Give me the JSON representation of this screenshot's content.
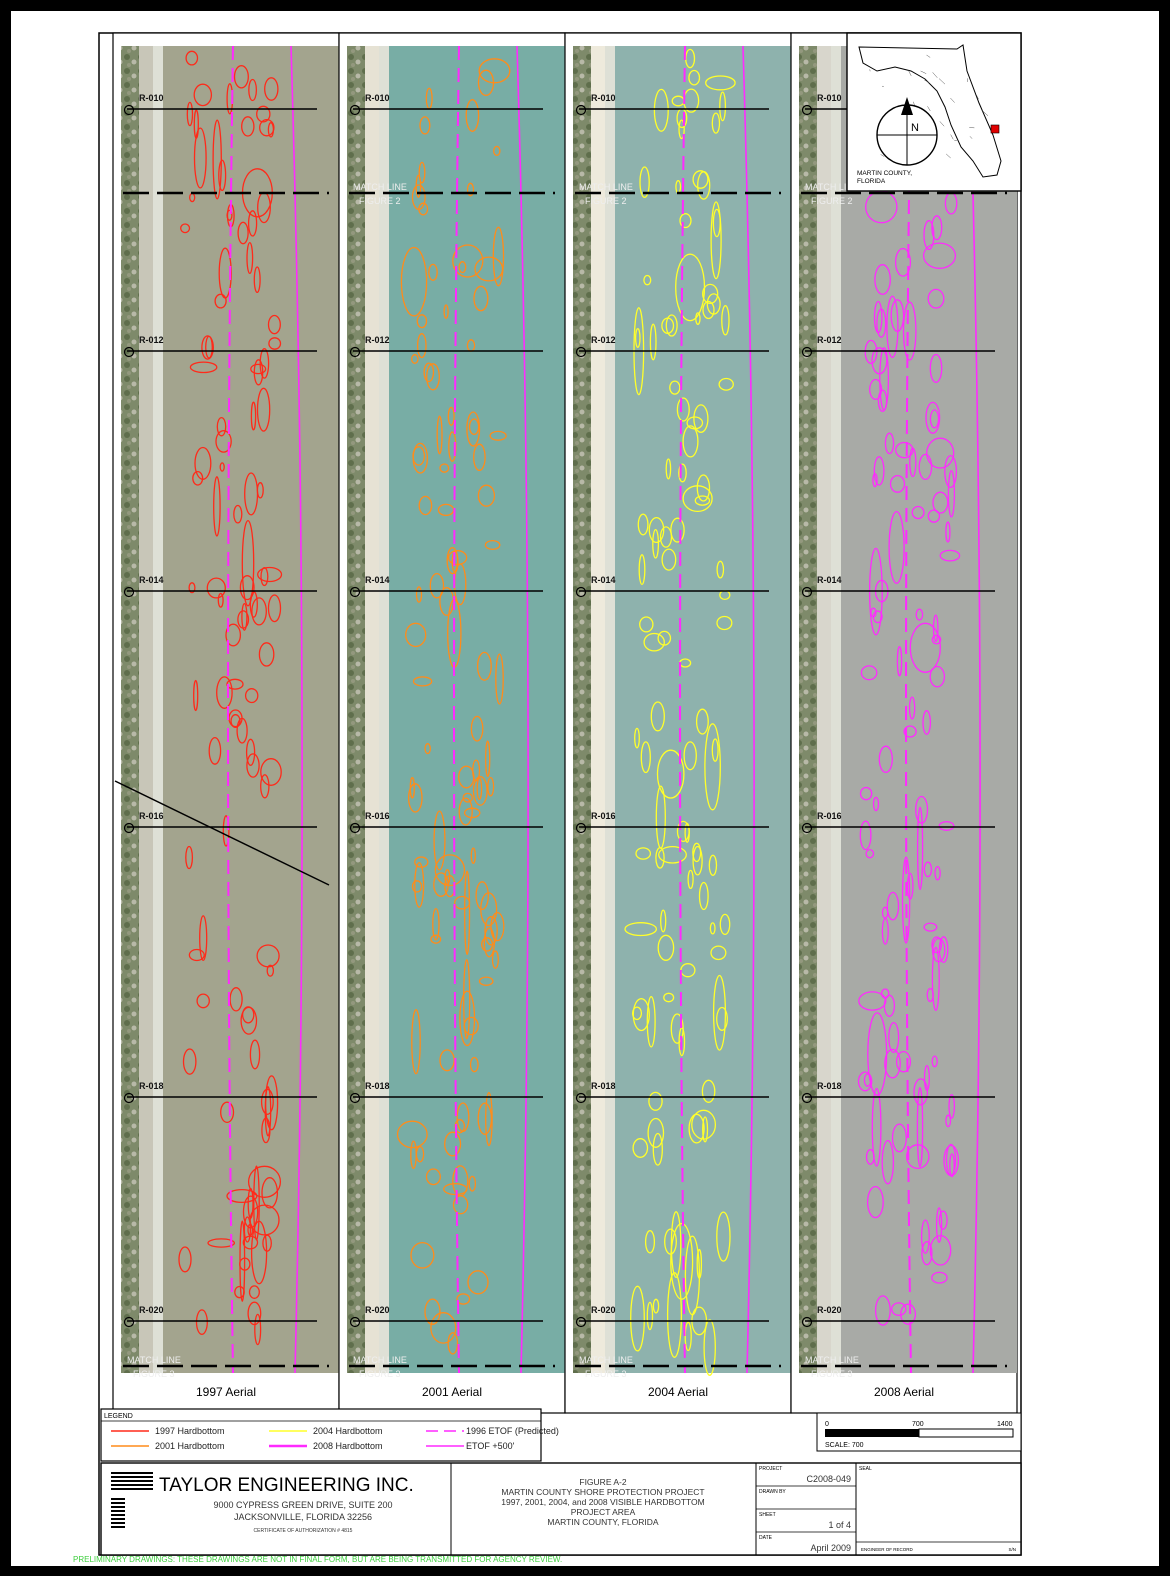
{
  "panels": [
    {
      "id": "p1997",
      "caption": "1997 Aerial",
      "color": "#ff2a1a",
      "water": "#a3a48e",
      "sand": "#c8c6b8",
      "has_match_text": false
    },
    {
      "id": "p2001",
      "caption": "2001 Aerial",
      "color": "#ff8c1a",
      "water": "#78ada5",
      "sand": "#e6e2d4",
      "has_match_text": true
    },
    {
      "id": "p2004",
      "caption": "2004 Aerial",
      "color": "#ffff2a",
      "water": "#8eb2ad",
      "sand": "#eeeadc",
      "has_match_text": true
    },
    {
      "id": "p2008",
      "caption": "2008 Aerial",
      "color": "#ff2aff",
      "water": "#a8aaa6",
      "sand": "#d8d6cc",
      "has_match_text": true
    }
  ],
  "range_lines": [
    "R-010",
    "R-012",
    "R-014",
    "R-016",
    "R-018",
    "R-020"
  ],
  "match_lines": {
    "top_1": "MATCH LINE",
    "top_2": "FIGURE 2",
    "bottom_1": "MATCH LINE",
    "bottom_2": "FIGURE 3"
  },
  "locator_map": {
    "caption_1": "MARTIN COUNTY,",
    "caption_2": "FLORIDA",
    "north": "N"
  },
  "legend": {
    "title": "LEGEND",
    "items": [
      {
        "label": "1997 Hardbottom",
        "color": "#ff2a1a",
        "style": "solid"
      },
      {
        "label": "2001 Hardbottom",
        "color": "#ff8c1a",
        "style": "solid"
      },
      {
        "label": "2004 Hardbottom",
        "color": "#ffff2a",
        "style": "solid"
      },
      {
        "label": "2008 Hardbottom",
        "color": "#ff2aff",
        "style": "thick"
      },
      {
        "label": "1996 ETOF (Predicted)",
        "color": "#ff2aff",
        "style": "dashed"
      },
      {
        "label": "ETOF +500'",
        "color": "#ff2aff",
        "style": "thin"
      }
    ]
  },
  "scale": {
    "tick_0": "0",
    "tick_1": "700",
    "tick_2": "1400",
    "label": "SCALE: 700"
  },
  "title_block": {
    "company": "TAYLOR ENGINEERING INC.",
    "address_1": "9000 CYPRESS GREEN DRIVE, SUITE 200",
    "address_2": "JACKSONVILLE, FLORIDA 32256",
    "cert": "CERTIFICATE OF AUTHORIZATION # 4815",
    "fig_1": "FIGURE A-2",
    "fig_2": "MARTIN COUNTY SHORE PROTECTION PROJECT",
    "fig_3": "1997, 2001, 2004, and 2008 VISIBLE HARDBOTTOM",
    "fig_4": "PROJECT AREA",
    "fig_5": "MARTIN COUNTY, FLORIDA",
    "project_label": "PROJECT",
    "project": "C2008-049",
    "drawn_label": "DRAWN BY",
    "sheet_label": "SHEET",
    "sheet": "1 of 4",
    "date_label": "DATE",
    "date": "April 2009",
    "seal_label": "SEAL",
    "engineer_label": "ENGINEER OF RECORD",
    "pe_label": "S/N"
  },
  "notice": "PRELIMINARY DRAWINGS: THESE DRAWINGS ARE NOT IN FINAL FORM, BUT ARE BEING TRANSMITTED FOR AGENCY REVIEW."
}
